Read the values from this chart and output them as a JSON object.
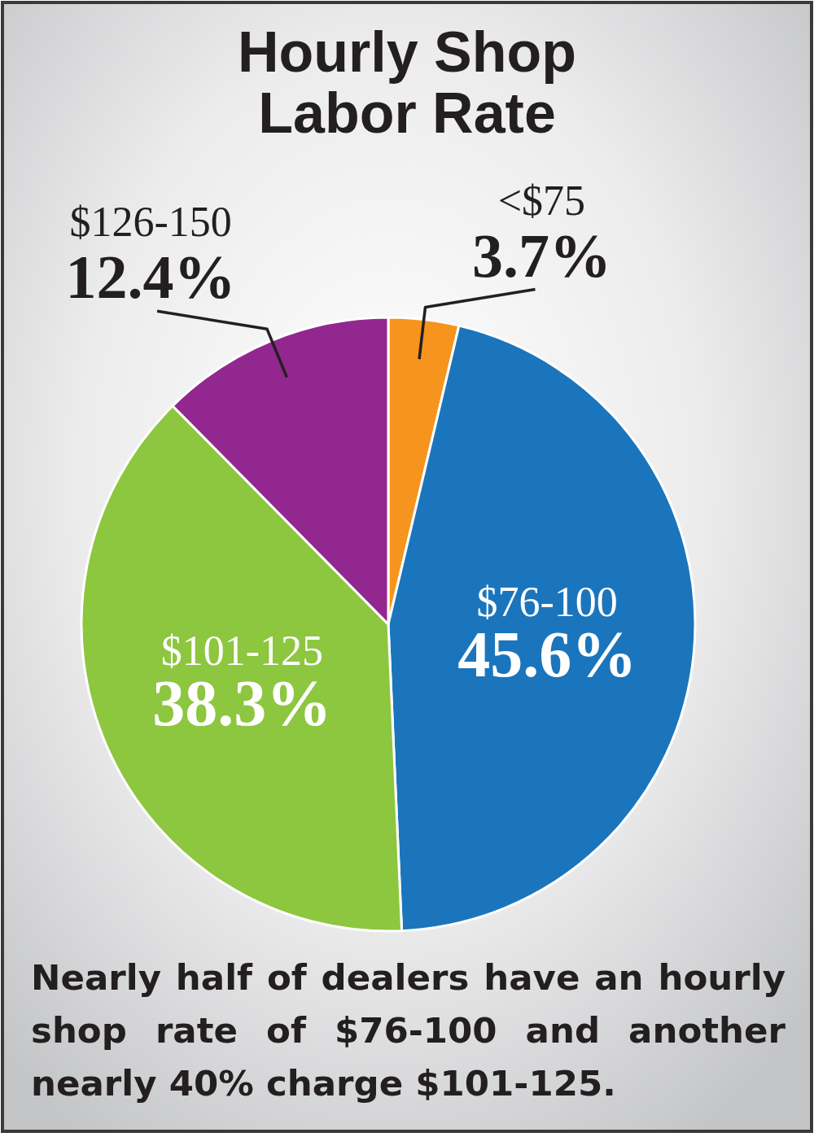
{
  "chart_data": {
    "type": "pie",
    "title": "Hourly Shop Labor Rate",
    "categories": [
      "<$75",
      "$76-100",
      "$101-125",
      "$126-150"
    ],
    "values": [
      3.7,
      45.6,
      38.3,
      12.4
    ],
    "colors": [
      "#f7941d",
      "#1b75bc",
      "#8dc63f",
      "#92278f"
    ],
    "value_labels": [
      "3.7%",
      "45.6%",
      "38.3%",
      "12.4%"
    ],
    "annotations": [
      "Nearly half of dealers have an hourly shop rate of $76-100 and another nearly 40% charge $101-125."
    ]
  }
}
